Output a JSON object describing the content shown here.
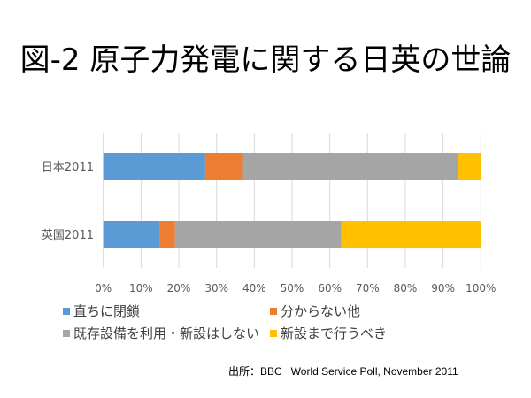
{
  "title": "図-2 原子力発電に関する日英の世論",
  "source": "出所：BBC   World Service Poll, November 2011",
  "chart_data": {
    "type": "bar",
    "orientation": "horizontal",
    "stacked": "percent",
    "title": "図-2 原子力発電に関する日英の世論",
    "xlabel": "",
    "ylabel": "",
    "xlim": [
      0,
      100
    ],
    "grid": true,
    "legend_position": "bottom",
    "categories": [
      "日本2011",
      "英国2011"
    ],
    "x_ticks": [
      "0%",
      "10%",
      "20%",
      "30%",
      "40%",
      "50%",
      "60%",
      "70%",
      "80%",
      "90%",
      "100%"
    ],
    "series": [
      {
        "name": "直ちに閉鎖",
        "color": "#5B9BD5",
        "values": [
          27,
          15
        ]
      },
      {
        "name": "分からない他",
        "color": "#ED7D31",
        "values": [
          10,
          4
        ]
      },
      {
        "name": "既存設備を利用・新設はしない",
        "color": "#A5A5A5",
        "values": [
          57,
          44
        ]
      },
      {
        "name": "新設まで行うべき",
        "color": "#FFC000",
        "values": [
          6,
          37
        ]
      }
    ]
  }
}
